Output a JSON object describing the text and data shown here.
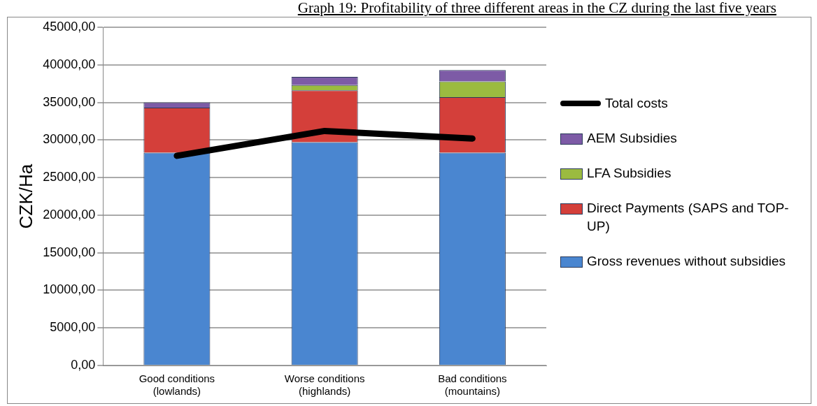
{
  "chart_data": {
    "type": "bar",
    "title": "Graph 19: Profitability of three different areas in the CZ during the last five years",
    "ylabel": "CZK/Ha",
    "categories": [
      "Good conditions (lowlands)",
      "Worse conditions (highlands)",
      "Bad conditions (mountains)"
    ],
    "stacked": true,
    "series": [
      {
        "name": "Gross revenues without subsidies",
        "color": "#4a86d0",
        "values": [
          28300,
          29700,
          28300
        ]
      },
      {
        "name": "Direct Payments (SAPS and TOP-UP)",
        "color": "#d43f3a",
        "values": [
          6000,
          6900,
          7400
        ]
      },
      {
        "name": "LFA Subsidies",
        "color": "#9bbb40",
        "values": [
          0,
          700,
          2100
        ]
      },
      {
        "name": "AEM Subsidies",
        "color": "#7d5ba6",
        "values": [
          700,
          1100,
          1500
        ]
      },
      {
        "name": "Total costs",
        "type": "line",
        "color": "#000000",
        "values": [
          27900,
          31200,
          30200
        ]
      }
    ],
    "ylim": [
      0,
      45000
    ],
    "yticks": [
      {
        "value": 0,
        "label": "0,00"
      },
      {
        "value": 5000,
        "label": "5000,00"
      },
      {
        "value": 10000,
        "label": "10000,00"
      },
      {
        "value": 15000,
        "label": "15000,00"
      },
      {
        "value": 20000,
        "label": "20000,00"
      },
      {
        "value": 25000,
        "label": "25000,00"
      },
      {
        "value": 30000,
        "label": "30000,00"
      },
      {
        "value": 35000,
        "label": "35000,00"
      },
      {
        "value": 40000,
        "label": "40000,00"
      },
      {
        "value": 45000,
        "label": "45000,00"
      }
    ],
    "grid": "y",
    "legend": "right",
    "marker": "none"
  }
}
